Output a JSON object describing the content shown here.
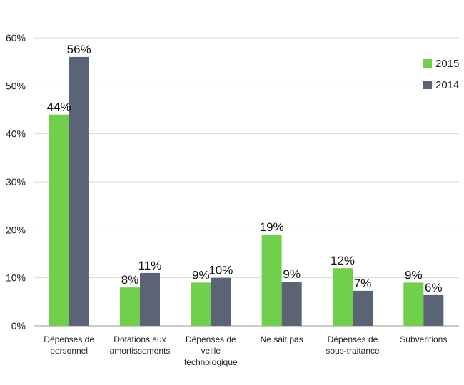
{
  "chart_data": {
    "type": "bar",
    "categories": [
      [
        "Dépenses de",
        "personnel"
      ],
      [
        "Dotations aux",
        "amortissements"
      ],
      [
        "Dépenses de",
        "veille",
        "technologique"
      ],
      [
        "Ne sait pas"
      ],
      [
        "Dépenses de",
        "sous-traitance"
      ],
      [
        "Subventions"
      ]
    ],
    "series": [
      {
        "name": "2015",
        "color": "#70d04c",
        "values": [
          44,
          8,
          9,
          19,
          12,
          9
        ],
        "labels": [
          "44%",
          "8%",
          "9%",
          "19%",
          "12%",
          "9%"
        ]
      },
      {
        "name": "2014",
        "color": "#5b6475",
        "values": [
          56,
          11,
          10,
          9.2,
          7.3,
          6.4
        ],
        "labels": [
          "56%",
          "11%",
          "10%",
          "9%",
          "7%",
          "6%"
        ]
      }
    ],
    "y_ticks": [
      "0%",
      "10%",
      "20%",
      "30%",
      "40%",
      "50%",
      "60%"
    ],
    "ylim": [
      0,
      60
    ],
    "grid": true,
    "legend_position": "right"
  }
}
